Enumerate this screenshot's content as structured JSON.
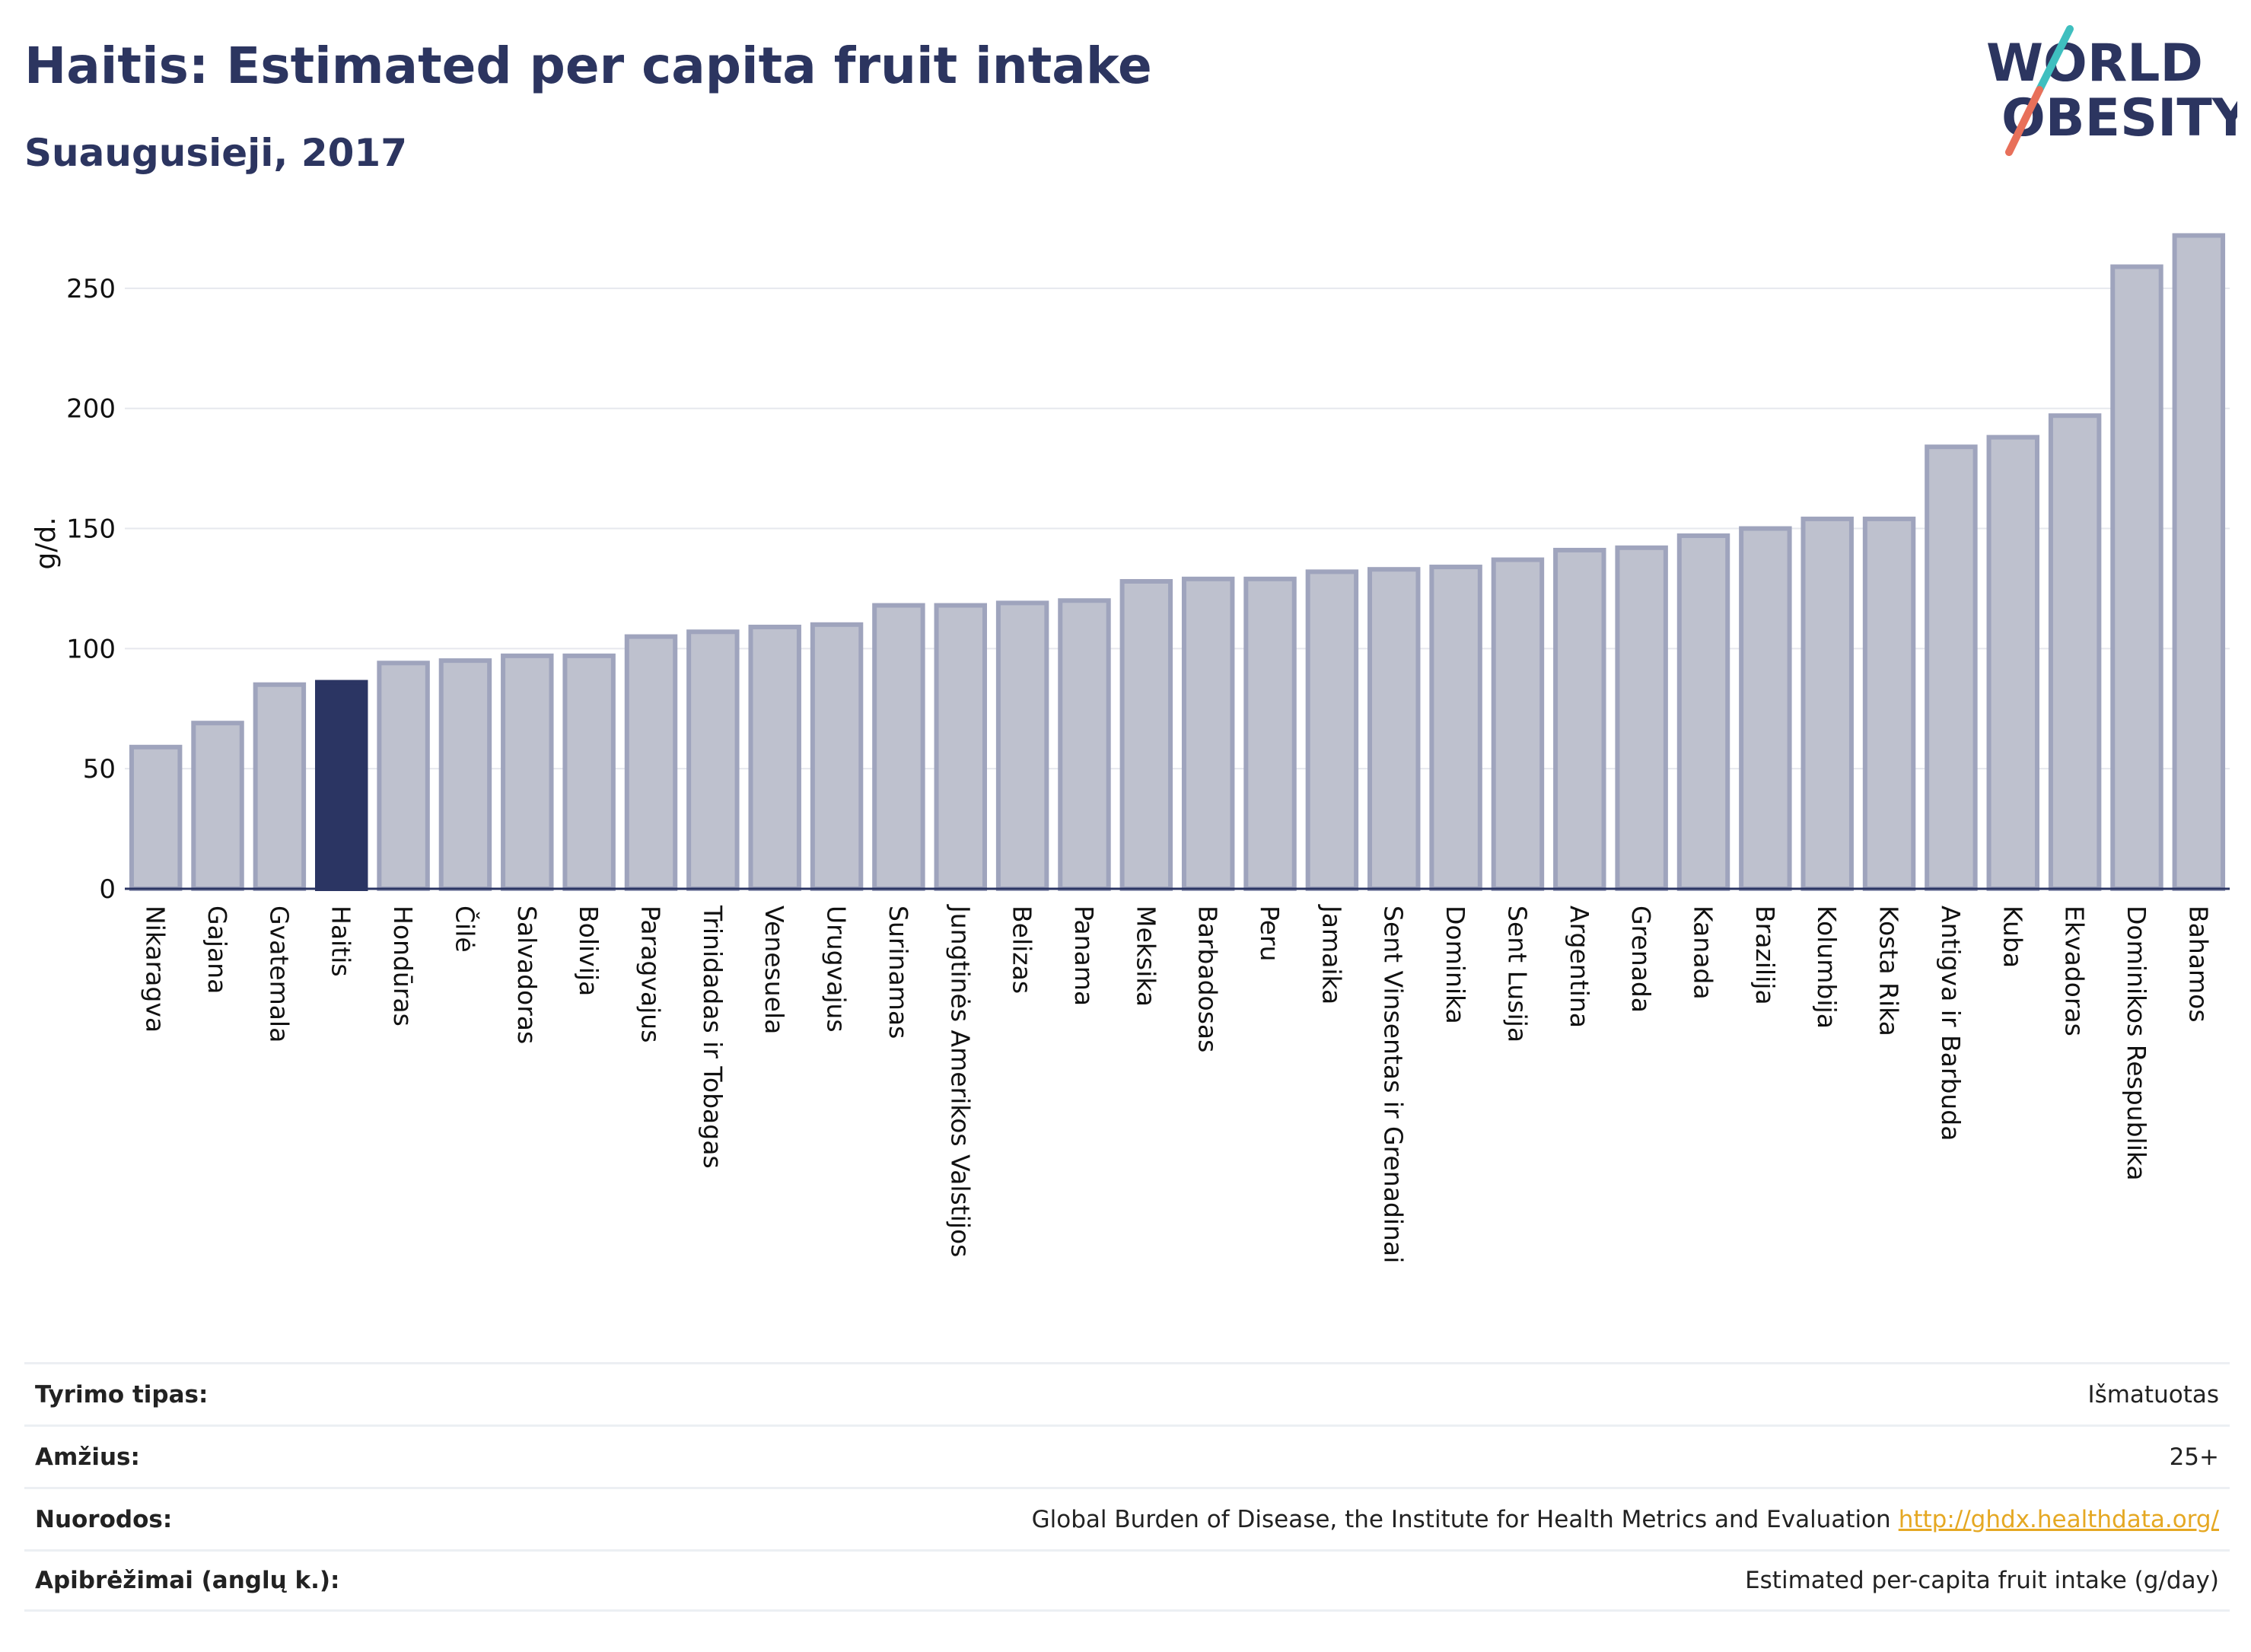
{
  "header": {
    "title": "Haitis: Estimated per capita fruit intake",
    "subtitle": "Suaugusieji, 2017"
  },
  "logo": {
    "line1": "WORLD",
    "line2": "OBESITY",
    "colors": {
      "text": "#2c3560",
      "slash_top": "#3fbfbf",
      "slash_bottom": "#e8705a"
    }
  },
  "chart_data": {
    "type": "bar",
    "ylabel": "g/d.",
    "ylim": [
      0,
      275
    ],
    "yticks": [
      0,
      50,
      100,
      150,
      200,
      250
    ],
    "grid": true,
    "highlight": "Haitis",
    "colors": {
      "bar": "#bec1ce",
      "bar_border": "#9fa4bd",
      "highlight": "#2b3563"
    },
    "categories": [
      "Nikaragva",
      "Gajana",
      "Gvatemala",
      "Haitis",
      "Hondūras",
      "Čilė",
      "Salvadoras",
      "Bolivija",
      "Paragvajus",
      "Trinidadas ir Tobagas",
      "Venesuela",
      "Urugvajus",
      "Surinamas",
      "Jungtinės Amerikos Valstijos",
      "Belizas",
      "Panama",
      "Meksika",
      "Barbadosas",
      "Peru",
      "Jamaika",
      "Sent Vinsentas ir Grenadinai",
      "Dominika",
      "Sent Lusija",
      "Argentina",
      "Grenada",
      "Kanada",
      "Brazilija",
      "Kolumbija",
      "Kosta Rika",
      "Antigva ir Barbuda",
      "Kuba",
      "Ekvadoras",
      "Dominikos Respublika",
      "Bahamos"
    ],
    "values": [
      59,
      69,
      85,
      86,
      94,
      95,
      97,
      97,
      105,
      107,
      109,
      110,
      118,
      118,
      119,
      120,
      128,
      129,
      129,
      132,
      133,
      134,
      137,
      141,
      142,
      147,
      150,
      154,
      154,
      184,
      188,
      197,
      259,
      272
    ]
  },
  "meta": [
    {
      "label": "Tyrimo tipas:",
      "value": "Išmatuotas",
      "link": ""
    },
    {
      "label": "Amžius:",
      "value": "25+",
      "link": ""
    },
    {
      "label": "Nuorodos:",
      "value": "Global Burden of Disease, the Institute for Health Metrics and Evaluation",
      "link": "http://ghdx.healthdata.org/"
    },
    {
      "label": "Apibrėžimai (anglų k.):",
      "value": "Estimated per-capita fruit intake (g/day)",
      "link": ""
    }
  ]
}
